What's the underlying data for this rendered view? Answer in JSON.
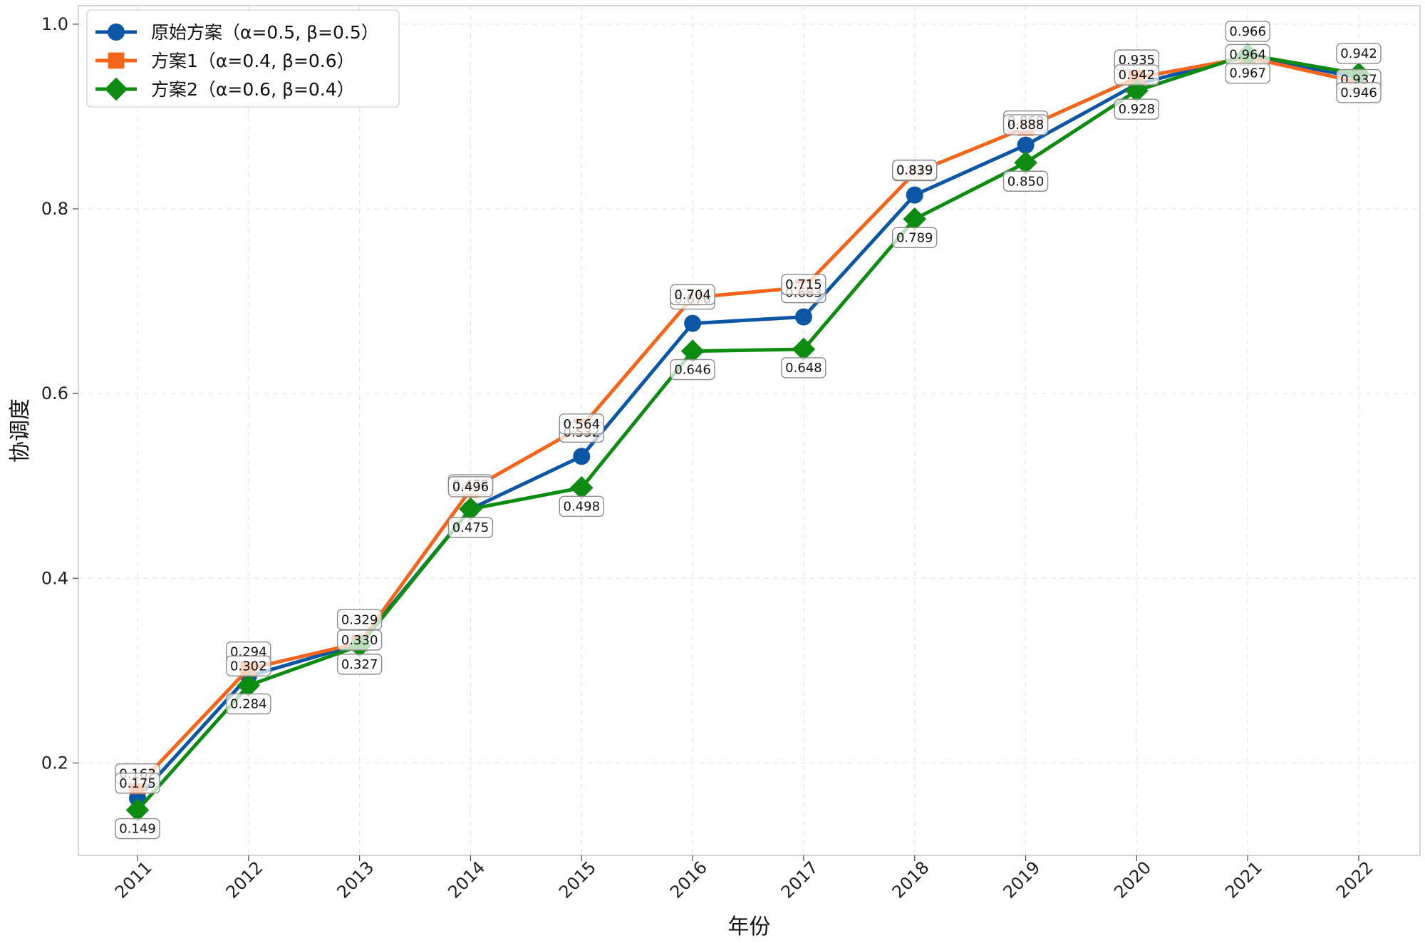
{
  "chart_data": {
    "type": "line",
    "title": "",
    "xlabel": "年份",
    "ylabel": "协调度",
    "ylim": [
      0.1,
      1.02
    ],
    "grid": true,
    "legend_position": "top-left",
    "categories": [
      "2011",
      "2012",
      "2013",
      "2014",
      "2015",
      "2016",
      "2017",
      "2018",
      "2019",
      "2020",
      "2021",
      "2022"
    ],
    "y_ticks": [
      {
        "value": 0.2,
        "label": "0.2"
      },
      {
        "value": 0.4,
        "label": "0.4"
      },
      {
        "value": 0.6,
        "label": "0.6"
      },
      {
        "value": 0.8,
        "label": "0.8"
      },
      {
        "value": 1.0,
        "label": "1.0"
      }
    ],
    "series": [
      {
        "name": "原始方案（α=0.5, β=0.5）",
        "color": "#0d56a6",
        "marker": "circle",
        "values": [
          0.162,
          0.294,
          0.329,
          0.475,
          0.532,
          0.676,
          0.683,
          0.815,
          0.869,
          0.935,
          0.966,
          0.942
        ],
        "labels": [
          "0.162",
          "0.294",
          "0.329",
          "0.475",
          "0.532",
          "0.676",
          "0.683",
          "0.815",
          "0.869",
          "0.935",
          "0.966",
          "0.942"
        ]
      },
      {
        "name": "方案1（α=0.4, β=0.6）",
        "color": "#f4651c",
        "marker": "square",
        "values": [
          0.175,
          0.302,
          0.33,
          0.496,
          0.564,
          0.704,
          0.715,
          0.839,
          0.888,
          0.942,
          0.964,
          0.937
        ],
        "labels": [
          "0.175",
          "0.302",
          "0.330",
          "0.496",
          "0.564",
          "0.704",
          "0.715",
          "0.839",
          "0.888",
          "0.942",
          "0.964",
          "0.937"
        ]
      },
      {
        "name": "方案2（α=0.6, β=0.4）",
        "color": "#0e8c12",
        "marker": "diamond",
        "values": [
          0.149,
          0.284,
          0.327,
          0.475,
          0.498,
          0.646,
          0.648,
          0.789,
          0.85,
          0.928,
          0.967,
          0.946
        ],
        "labels": [
          "0.149",
          "0.284",
          "0.327",
          "0.475",
          "0.498",
          "0.646",
          "0.648",
          "0.789",
          "0.850",
          "0.928",
          "0.967",
          "0.946"
        ]
      }
    ]
  }
}
